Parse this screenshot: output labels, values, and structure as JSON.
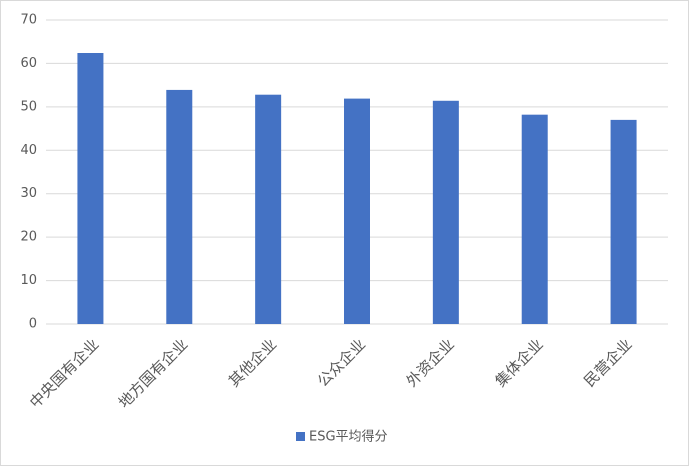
{
  "chart_data": {
    "type": "bar",
    "categories": [
      "中央国有企业",
      "地方国有企业",
      "其他企业",
      "公众企业",
      "外资企业",
      "集体企业",
      "民营企业"
    ],
    "series": [
      {
        "name": "ESG平均得分",
        "color": "#4472c4",
        "values": [
          62.4,
          53.9,
          52.8,
          51.9,
          51.4,
          48.2,
          47.0
        ]
      }
    ],
    "ylim": [
      0,
      70
    ],
    "yticks": [
      0,
      10,
      20,
      30,
      40,
      50,
      60,
      70
    ],
    "grid": true,
    "legend": "bottom"
  }
}
